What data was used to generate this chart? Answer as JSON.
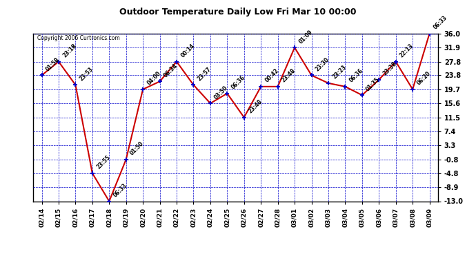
{
  "title": "Outdoor Temperature Daily Low Fri Mar 10 00:00",
  "copyright": "Copyright 2006 Curtronics.com",
  "background_color": "#ffffff",
  "plot_background": "#ffffff",
  "grid_color": "#0000cc",
  "line_color": "#cc0000",
  "marker_color": "#0000cc",
  "x_labels": [
    "02/14",
    "02/15",
    "02/16",
    "02/17",
    "02/18",
    "02/19",
    "02/20",
    "02/21",
    "02/22",
    "02/23",
    "02/24",
    "02/25",
    "02/26",
    "02/27",
    "02/28",
    "03/01",
    "03/02",
    "03/03",
    "03/04",
    "03/05",
    "03/06",
    "03/07",
    "03/08",
    "03/09"
  ],
  "y_values": [
    23.8,
    27.8,
    21.0,
    -4.8,
    -13.0,
    -0.8,
    19.7,
    22.0,
    27.8,
    21.0,
    15.6,
    18.5,
    11.5,
    20.5,
    20.5,
    31.9,
    23.8,
    21.5,
    20.5,
    18.0,
    22.5,
    27.8,
    19.7,
    36.0
  ],
  "point_labels": [
    "01:58",
    "23:18",
    "23:53",
    "23:55",
    "06:33",
    "01:50",
    "04:00",
    "06:34",
    "00:14",
    "23:57",
    "03:50",
    "06:36",
    "23:48",
    "00:42",
    "23:48",
    "01:09",
    "23:30",
    "23:23",
    "06:36",
    "01:35",
    "23:38",
    "22:13",
    "06:20",
    "06:33"
  ],
  "ylim": [
    -13.0,
    36.0
  ],
  "yticks": [
    36.0,
    31.9,
    27.8,
    23.8,
    19.7,
    15.6,
    11.5,
    7.4,
    3.3,
    -0.8,
    -4.8,
    -8.9,
    -13.0
  ]
}
